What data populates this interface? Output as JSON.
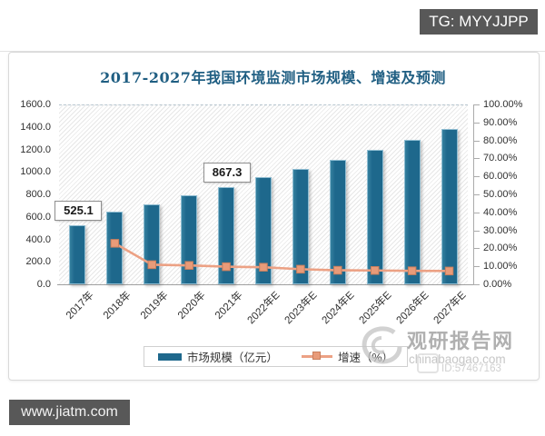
{
  "overlays": {
    "tg_badge": "TG: MYYJJPP",
    "site_badge": "www.jiatm.com"
  },
  "watermark": {
    "brand": "观研报告网",
    "site": "chinabaogao.com",
    "stamp_id": "ID:57467163"
  },
  "chart_data": {
    "type": "bar",
    "combo": "bar+line dual-axis",
    "title": "2017-2027年我国环境监测市场规模、增速及预测",
    "categories": [
      "2017年",
      "2018年",
      "2019年",
      "2020年",
      "2021年",
      "2022年E",
      "2023年E",
      "2024年E",
      "2025年E",
      "2026年E",
      "2027年E"
    ],
    "series": [
      {
        "name": "市场规模（亿元）",
        "type": "bar",
        "axis": "left",
        "color": "#1E688C",
        "values": [
          525.1,
          645,
          715,
          790,
          867.3,
          950,
          1030,
          1110,
          1195,
          1285,
          1380
        ]
      },
      {
        "name": "增速（%）",
        "type": "line",
        "axis": "right",
        "color": "#ECA184",
        "values": [
          null,
          22.8,
          10.9,
          10.5,
          9.8,
          9.5,
          8.4,
          7.8,
          7.7,
          7.5,
          7.4
        ]
      }
    ],
    "data_labels": [
      {
        "category": "2017年",
        "text": "525.1"
      },
      {
        "category": "2021年",
        "text": "867.3"
      }
    ],
    "left_axis": {
      "min": 0,
      "max": 1600,
      "step": 200,
      "tick_labels": [
        "0.0",
        "200.0",
        "400.0",
        "600.0",
        "800.0",
        "1000.0",
        "1200.0",
        "1400.0",
        "1600.0"
      ]
    },
    "right_axis": {
      "min": 0,
      "max": 100,
      "step": 10,
      "tick_labels": [
        "0.00%",
        "10.00%",
        "20.00%",
        "30.00%",
        "40.00%",
        "50.00%",
        "60.00%",
        "70.00%",
        "80.00%",
        "90.00%",
        "100.00%"
      ]
    },
    "legend": [
      "市场规模（亿元）",
      "增速（%）"
    ],
    "legend_position": "bottom",
    "grid": false,
    "plot_background": "diagonal-hatch"
  }
}
